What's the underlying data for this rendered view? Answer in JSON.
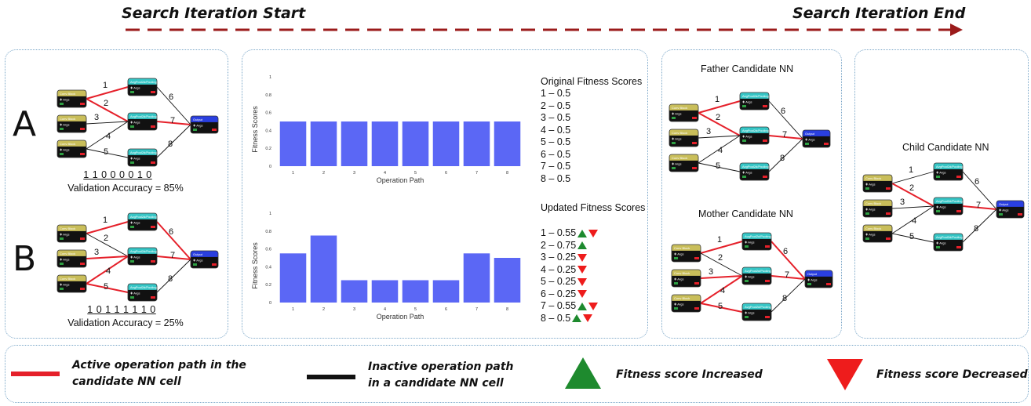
{
  "header": {
    "start_label": "Search Iteration Start",
    "end_label": "Search Iteration End",
    "arrow_color": "#9b1b1b"
  },
  "candidates": {
    "a": {
      "letter": "A",
      "bits": "1 1 0 0 0 0 1 0",
      "accuracy": "Validation Accuracy = 85%",
      "edge_labels": [
        "1",
        "2",
        "3",
        "4",
        "5",
        "6",
        "7",
        "8"
      ]
    },
    "b": {
      "letter": "B",
      "bits": "1 0 1 1 1 1 1 0",
      "accuracy": "Validation Accuracy = 25%",
      "edge_labels": [
        "1",
        "2",
        "3",
        "4",
        "5",
        "6",
        "7",
        "8"
      ]
    }
  },
  "block_labels": {
    "input": "Conv Block",
    "input_sub": "Args",
    "out_tag": "OUT",
    "mid": "AvgPool2d/Pooling",
    "mid_sub": "Args",
    "output": "Output",
    "output_sub": "Args"
  },
  "fitness": {
    "original_title": "Original Fitness Scores",
    "updated_title": "Updated Fitness Scores",
    "original_scores": [
      "1 – 0.5",
      "2 – 0.5",
      "3 – 0.5",
      "4 – 0.5",
      "5 – 0.5",
      "6 – 0.5",
      "7 – 0.5",
      "8 – 0.5"
    ],
    "updated_scores": [
      {
        "text": "1 – 0.55",
        "marks": [
          "up",
          "down"
        ]
      },
      {
        "text": "2 – 0.75",
        "marks": [
          "up"
        ]
      },
      {
        "text": "3 – 0.25",
        "marks": [
          "down"
        ]
      },
      {
        "text": "4 – 0.25",
        "marks": [
          "down"
        ]
      },
      {
        "text": "5 – 0.25",
        "marks": [
          "down"
        ]
      },
      {
        "text": "6 – 0.25",
        "marks": [
          "down"
        ]
      },
      {
        "text": "7 – 0.55",
        "marks": [
          "up",
          "down"
        ]
      },
      {
        "text": "8 – 0.5",
        "marks": [
          "up",
          "down"
        ]
      }
    ]
  },
  "chart_data": [
    {
      "type": "bar",
      "categories": [
        "1",
        "2",
        "3",
        "4",
        "5",
        "6",
        "7",
        "8"
      ],
      "values": [
        0.5,
        0.5,
        0.5,
        0.5,
        0.5,
        0.5,
        0.5,
        0.5
      ],
      "xlabel": "Operation Path",
      "ylabel": "Fitness Scores",
      "ylim": [
        0,
        1
      ],
      "yticks": [
        "0",
        "0.2",
        "0.4",
        "0.6",
        "0.8",
        "1"
      ],
      "bar_color": "#5b67f5"
    },
    {
      "type": "bar",
      "categories": [
        "1",
        "2",
        "3",
        "4",
        "5",
        "6",
        "7",
        "8"
      ],
      "values": [
        0.55,
        0.75,
        0.25,
        0.25,
        0.25,
        0.25,
        0.55,
        0.5
      ],
      "xlabel": "Operation Path",
      "ylabel": "Fitness Scores",
      "ylim": [
        0,
        1
      ],
      "yticks": [
        "0",
        "0.2",
        "0.4",
        "0.6",
        "0.8",
        "1"
      ],
      "bar_color": "#5b67f5"
    }
  ],
  "parents": {
    "father_title": "Father Candidate NN",
    "mother_title": "Mother Candidate NN",
    "child_title": "Child Candidate NN"
  },
  "legend": {
    "active_line1": "Active operation path in the",
    "active_line2": "candidate NN cell",
    "inactive_line1": "Inactive operation path",
    "inactive_line2": "in a candidate NN cell",
    "increased": "Fitness score Increased",
    "decreased": "Fitness score Decreased",
    "active_color": "#e5202a",
    "inactive_color": "#111111",
    "up_color": "#1e8a2e",
    "down_color": "#ee1c1c"
  }
}
